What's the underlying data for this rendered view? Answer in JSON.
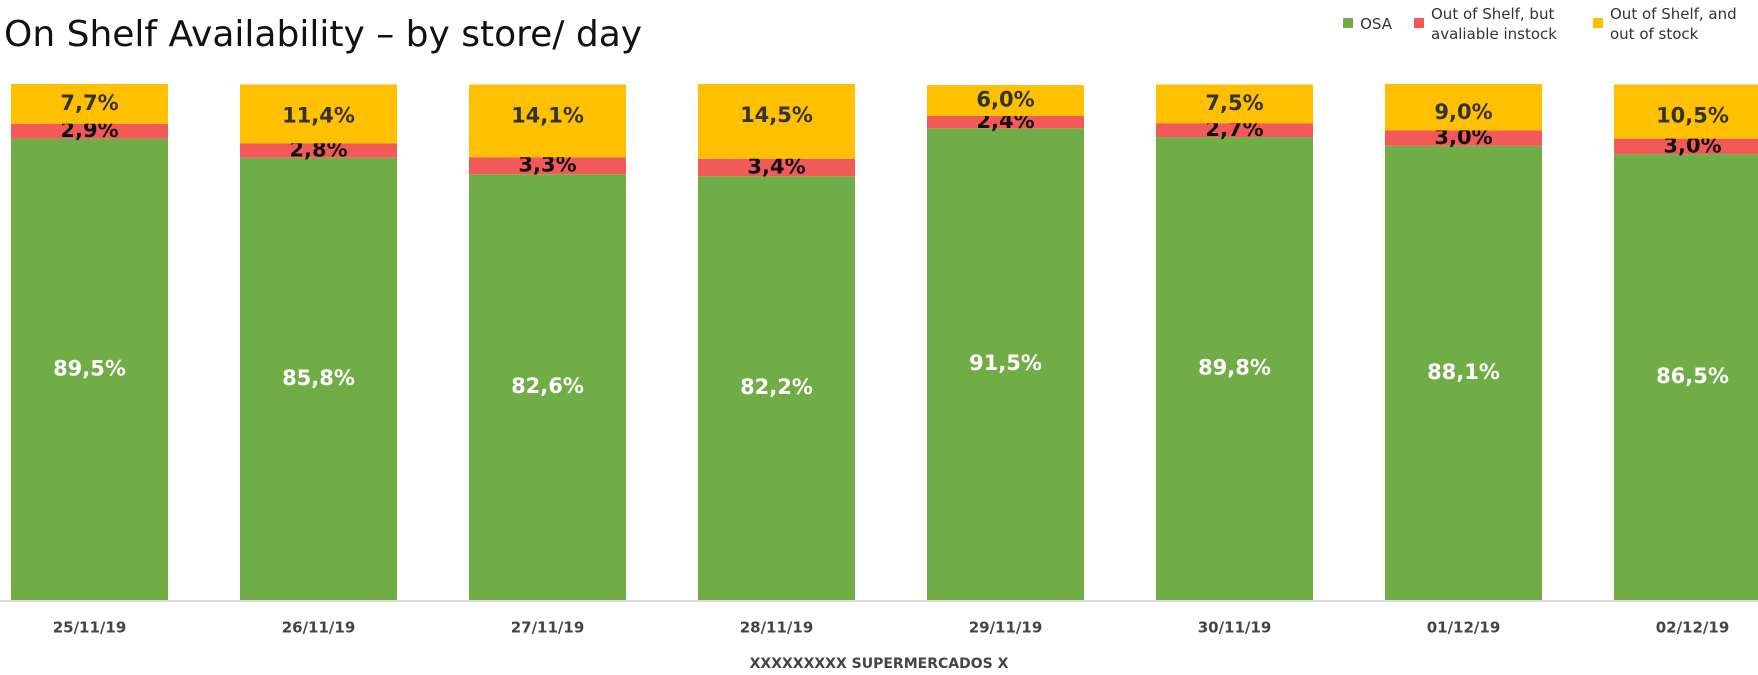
{
  "chart_data": {
    "type": "stacked_bar",
    "title": "On Shelf Availability – by store/ day",
    "x_label": "XXXXXXXXX SUPERMERCADOS X",
    "categories": [
      "25/11/19",
      "26/11/19",
      "27/11/19",
      "28/11/19",
      "29/11/19",
      "30/11/19",
      "01/12/19",
      "02/12/19"
    ],
    "series": [
      {
        "name": "OSA",
        "color": "#70ad47",
        "values": [
          89.5,
          85.8,
          82.6,
          82.2,
          91.5,
          89.8,
          88.1,
          86.5
        ],
        "value_labels": [
          "89,5%",
          "85,8%",
          "82,6%",
          "82,2%",
          "91,5%",
          "89,8%",
          "88,1%",
          "86,5%"
        ]
      },
      {
        "name": "Out of Shelf, but avaliable instock",
        "color": "#f25a5a",
        "values": [
          2.9,
          2.8,
          3.3,
          3.4,
          2.4,
          2.7,
          3.0,
          3.0
        ],
        "value_labels": [
          "2,9%",
          "2,8%",
          "3,3%",
          "3,4%",
          "2,4%",
          "2,7%",
          "3,0%",
          "3,0%"
        ]
      },
      {
        "name": "Out of Shelf, and out of stock",
        "color": "#ffc000",
        "values": [
          7.7,
          11.4,
          14.1,
          14.5,
          6.0,
          7.5,
          9.0,
          10.5
        ],
        "value_labels": [
          "7,7%",
          "11,4%",
          "14,1%",
          "14,5%",
          "6,0%",
          "7,5%",
          "9,0%",
          "10,5%"
        ]
      }
    ],
    "legend": "top-right"
  }
}
